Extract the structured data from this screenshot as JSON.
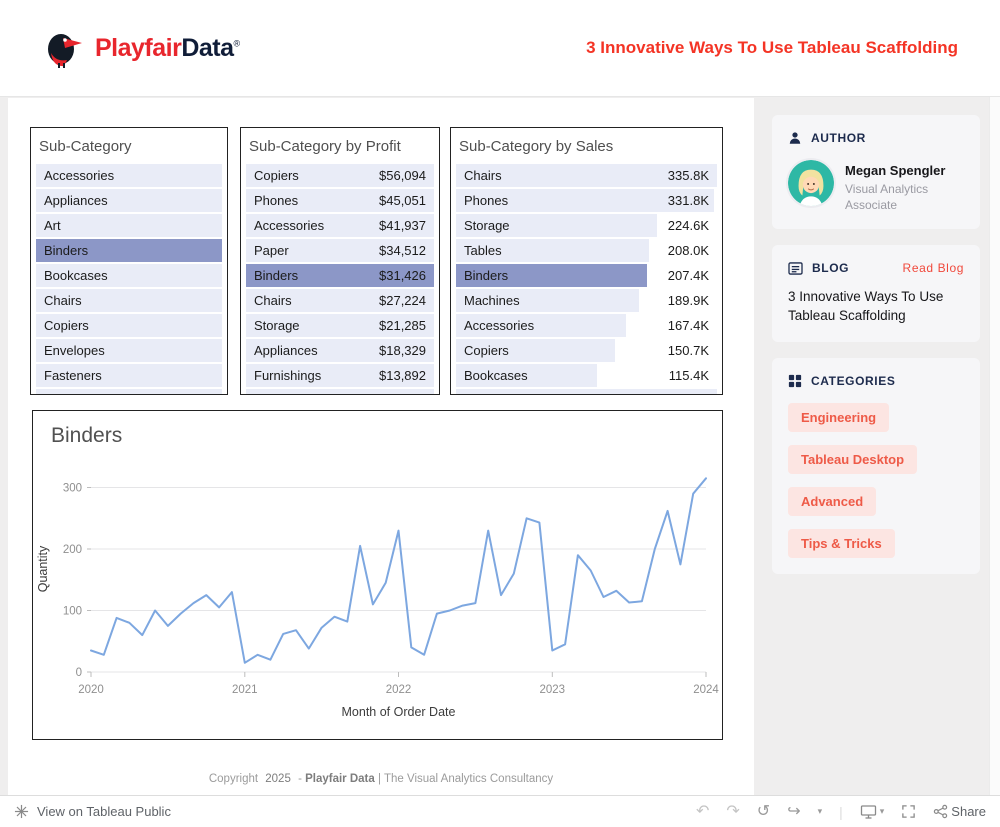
{
  "header": {
    "logo": {
      "part1": "Playfair",
      "part2": "Data",
      "reg": "®"
    },
    "title": "3 Innovative Ways To Use Tableau Scaffolding"
  },
  "tables": {
    "subcategory": {
      "title": "Sub-Category",
      "selected": "Binders",
      "rows": [
        "Accessories",
        "Appliances",
        "Art",
        "Binders",
        "Bookcases",
        "Chairs",
        "Copiers",
        "Envelopes",
        "Fasteners"
      ]
    },
    "profit": {
      "title": "Sub-Category by Profit",
      "selected": "Binders",
      "rows": [
        {
          "label": "Copiers",
          "value": "$56,094"
        },
        {
          "label": "Phones",
          "value": "$45,051"
        },
        {
          "label": "Accessories",
          "value": "$41,937"
        },
        {
          "label": "Paper",
          "value": "$34,512"
        },
        {
          "label": "Binders",
          "value": "$31,426"
        },
        {
          "label": "Chairs",
          "value": "$27,224"
        },
        {
          "label": "Storage",
          "value": "$21,285"
        },
        {
          "label": "Appliances",
          "value": "$18,329"
        },
        {
          "label": "Furnishings",
          "value": "$13,892"
        }
      ]
    },
    "sales": {
      "title": "Sub-Category by Sales",
      "selected": "Binders",
      "rows": [
        {
          "label": "Chairs",
          "value": "335.8K",
          "bar": 100
        },
        {
          "label": "Phones",
          "value": "331.8K",
          "bar": 99
        },
        {
          "label": "Storage",
          "value": "224.6K",
          "bar": 77
        },
        {
          "label": "Tables",
          "value": "208.0K",
          "bar": 74
        },
        {
          "label": "Binders",
          "value": "207.4K",
          "bar": 73
        },
        {
          "label": "Machines",
          "value": "189.9K",
          "bar": 70
        },
        {
          "label": "Accessories",
          "value": "167.4K",
          "bar": 65
        },
        {
          "label": "Copiers",
          "value": "150.7K",
          "bar": 61
        },
        {
          "label": "Bookcases",
          "value": "115.4K",
          "bar": 54
        }
      ]
    }
  },
  "chart_data": {
    "type": "line",
    "title": "Binders",
    "xlabel": "Month of Order Date",
    "ylabel": "Quantity",
    "x_unit": "month",
    "x_range": [
      "2020-01",
      "2024-01"
    ],
    "x_ticks": [
      "2020",
      "2021",
      "2022",
      "2023",
      "2024"
    ],
    "x_tick_index": [
      0,
      12,
      24,
      36,
      48
    ],
    "y_ticks": [
      0,
      100,
      200,
      300
    ],
    "ylim": [
      0,
      335
    ],
    "line_color": "#7da7e0",
    "values": [
      35,
      28,
      88,
      80,
      60,
      100,
      75,
      95,
      112,
      125,
      105,
      130,
      15,
      28,
      20,
      62,
      68,
      38,
      72,
      90,
      82,
      205,
      110,
      145,
      230,
      40,
      28,
      95,
      100,
      108,
      112,
      230,
      125,
      160,
      250,
      243,
      35,
      45,
      190,
      165,
      122,
      132,
      113,
      115,
      200,
      262,
      175,
      290,
      315
    ]
  },
  "footer": {
    "prefix": "Copyright",
    "year": "2025",
    "dash": "-",
    "brand": "Playfair Data",
    "suffix": "| The Visual Analytics Consultancy"
  },
  "sidebar": {
    "author": {
      "heading": "AUTHOR",
      "name": "Megan Spengler",
      "role": "Visual Analytics Associate"
    },
    "blog": {
      "heading": "BLOG",
      "link_label": "Read Blog",
      "title": "3 Innovative Ways To Use Tableau Scaffolding"
    },
    "categories": {
      "heading": "CATEGORIES",
      "items": [
        "Engineering",
        "Tableau Desktop",
        "Advanced",
        "Tips & Tricks"
      ]
    }
  },
  "toolbar": {
    "view_label": "View on Tableau Public",
    "share_label": "Share",
    "icons": {
      "undo": "↶",
      "redo": "↷",
      "reset": "↺",
      "forward": "↪",
      "caret": "▾"
    }
  },
  "colors": {
    "accent_red": "#f43425",
    "row_bg": "#e9ecf7",
    "row_selected": "#8c97c7",
    "pill_bg": "#fce5e2",
    "pill_text": "#ee5a47",
    "card_bg": "#f6f6f8",
    "heading_navy": "#1d2b4d"
  }
}
